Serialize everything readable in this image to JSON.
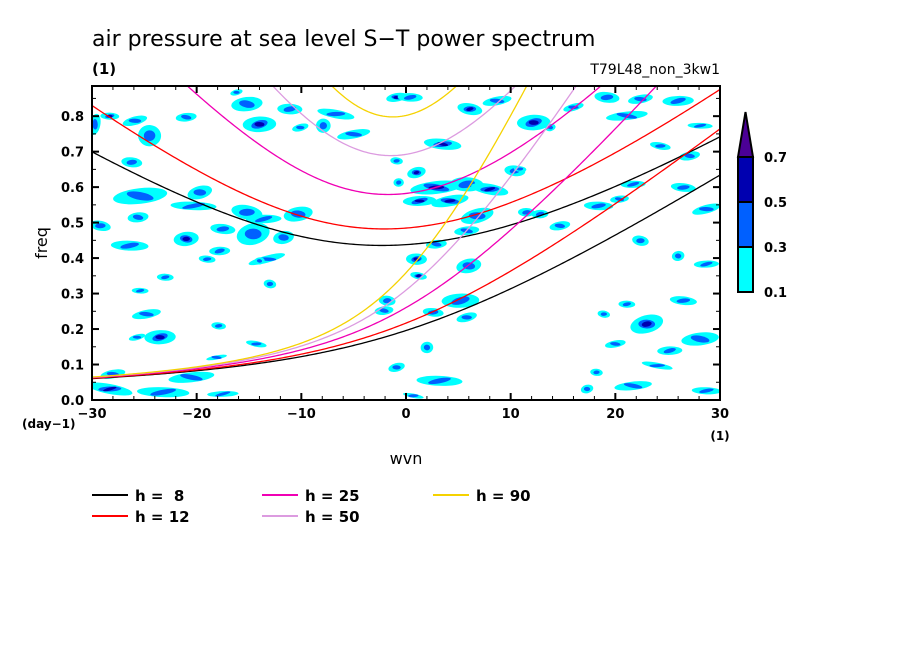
{
  "chart_data": {
    "type": "heatmap",
    "subtype": "filled-contour with overlaid dispersion curves",
    "title": "air pressure at sea level S−T power spectrum",
    "subtitle": "(1)",
    "run_label": "T79L48_non_3kw1",
    "xlabel": "wvn",
    "ylabel": "freq",
    "x_units": "(1)",
    "y_units": "(day−1)",
    "xlim": [
      -30,
      30
    ],
    "ylim": [
      0,
      0.885
    ],
    "xticks": [
      -30,
      -20,
      -10,
      0,
      10,
      20,
      30
    ],
    "xtick_labels": [
      "−30",
      "−20",
      "−10",
      "0",
      "10",
      "20",
      "30"
    ],
    "x_minor_step": 2,
    "yticks": [
      0.0,
      0.1,
      0.2,
      0.3,
      0.4,
      0.5,
      0.6,
      0.7,
      0.8
    ],
    "ytick_labels": [
      "0.0",
      "0.1",
      "0.2",
      "0.3",
      "0.4",
      "0.5",
      "0.6",
      "0.7",
      "0.8"
    ],
    "y_minor_step": 0.05,
    "grid": false,
    "colorbar": {
      "position": "right",
      "levels": [
        0.1,
        0.3,
        0.5,
        0.7
      ],
      "level_labels": [
        "0.1",
        "0.3",
        "0.5",
        "0.7"
      ],
      "colors": [
        "#00ffff",
        "#0060ff",
        "#0000b0",
        "#4b0096"
      ],
      "extend": "max"
    },
    "legend": {
      "placement": "bottom-left",
      "entries": [
        {
          "label": "h =  8",
          "h": 8,
          "color": "#000000"
        },
        {
          "label": "h = 12",
          "h": 12,
          "color": "#ff0000"
        },
        {
          "label": "h = 25",
          "h": 25,
          "color": "#f000b4"
        },
        {
          "label": "h = 50",
          "h": 50,
          "color": "#dc9be0"
        },
        {
          "label": "h = 90",
          "h": 90,
          "color": "#f5d200"
        }
      ]
    },
    "contour_regions_format": [
      "wvn",
      "freq",
      "half_width_wvn",
      "half_height_freq",
      "peak_power"
    ],
    "contour_regions": [
      [
        -16.2,
        0.867,
        0.6,
        0.008,
        0.2
      ],
      [
        -15.2,
        0.834,
        1.5,
        0.02,
        0.2
      ],
      [
        -11.1,
        0.82,
        1.2,
        0.015,
        0.2
      ],
      [
        -6.7,
        0.806,
        1.8,
        0.012,
        0.2
      ],
      [
        -0.9,
        0.853,
        1.0,
        0.012,
        0.4
      ],
      [
        -14,
        0.777,
        1.6,
        0.022,
        0.4
      ],
      [
        -24.5,
        0.745,
        1.1,
        0.03,
        0.2
      ],
      [
        -25.9,
        0.787,
        1.2,
        0.012,
        0.2
      ],
      [
        -21,
        0.797,
        1.0,
        0.012,
        0.2
      ],
      [
        -28.3,
        0.8,
        0.9,
        0.01,
        0.4
      ],
      [
        -29.7,
        0.777,
        0.5,
        0.03,
        0.2
      ],
      [
        -5,
        0.749,
        1.6,
        0.012,
        0.2
      ],
      [
        -7.9,
        0.773,
        0.7,
        0.02,
        0.2
      ],
      [
        -26.2,
        0.67,
        1.0,
        0.014,
        0.2
      ],
      [
        -19.7,
        0.585,
        1.2,
        0.018,
        0.2
      ],
      [
        -25.4,
        0.575,
        2.6,
        0.022,
        0.2
      ],
      [
        -20.3,
        0.547,
        2.2,
        0.012,
        0.2
      ],
      [
        -15.2,
        0.529,
        1.5,
        0.02,
        0.2
      ],
      [
        -10.3,
        0.524,
        1.4,
        0.02,
        0.2
      ],
      [
        -13.6,
        0.51,
        1.7,
        0.012,
        0.2
      ],
      [
        -17.5,
        0.482,
        1.2,
        0.014,
        0.2
      ],
      [
        -14.6,
        0.468,
        1.6,
        0.03,
        0.2
      ],
      [
        -21,
        0.454,
        1.2,
        0.02,
        0.4
      ],
      [
        -26.4,
        0.435,
        1.8,
        0.014,
        0.2
      ],
      [
        -29.2,
        0.491,
        1.0,
        0.014,
        0.2
      ],
      [
        -11.7,
        0.458,
        1.0,
        0.018,
        0.2
      ],
      [
        -17.8,
        0.42,
        1.0,
        0.012,
        0.2
      ],
      [
        -19,
        0.397,
        0.8,
        0.01,
        0.2
      ],
      [
        -13.3,
        0.397,
        1.8,
        0.01,
        0.2
      ],
      [
        -25.6,
        0.515,
        1.0,
        0.014,
        0.2
      ],
      [
        -23,
        0.346,
        0.8,
        0.01,
        0.2
      ],
      [
        -13,
        0.327,
        0.6,
        0.012,
        0.2
      ],
      [
        -24.8,
        0.242,
        1.4,
        0.012,
        0.2
      ],
      [
        -23.5,
        0.177,
        1.5,
        0.02,
        0.4
      ],
      [
        -17.9,
        0.209,
        0.7,
        0.01,
        0.2
      ],
      [
        -25.7,
        0.177,
        0.8,
        0.008,
        0.2
      ],
      [
        -20.5,
        0.064,
        2.2,
        0.014,
        0.2
      ],
      [
        -23.2,
        0.022,
        2.5,
        0.014,
        0.2
      ],
      [
        -28.3,
        0.031,
        2.2,
        0.014,
        0.4
      ],
      [
        -28,
        0.073,
        1.2,
        0.012,
        0.2
      ],
      [
        -17.5,
        0.017,
        1.5,
        0.008,
        0.2
      ],
      [
        -1.8,
        0.28,
        0.8,
        0.014,
        0.2
      ],
      [
        -0.9,
        0.092,
        0.8,
        0.012,
        0.2
      ],
      [
        -2.1,
        0.252,
        0.9,
        0.012,
        0.2
      ],
      [
        -25.4,
        0.308,
        0.8,
        0.008,
        0.2
      ],
      [
        -14.3,
        0.158,
        1.0,
        0.008,
        0.2
      ],
      [
        -18.1,
        0.12,
        1.0,
        0.006,
        0.2
      ],
      [
        -0.7,
        0.613,
        0.5,
        0.012,
        0.2
      ],
      [
        -0.9,
        0.674,
        0.6,
        0.01,
        0.2
      ],
      [
        -10.1,
        0.768,
        0.8,
        0.01,
        0.2
      ],
      [
        -14,
        0.392,
        0.5,
        0.01,
        0.2
      ],
      [
        0.4,
        0.853,
        1.2,
        0.012,
        0.2
      ],
      [
        6.1,
        0.82,
        1.2,
        0.016,
        0.4
      ],
      [
        8.7,
        0.843,
        1.4,
        0.012,
        0.2
      ],
      [
        12.2,
        0.782,
        1.6,
        0.022,
        0.4
      ],
      [
        3.5,
        0.721,
        1.8,
        0.015,
        0.4
      ],
      [
        1.0,
        0.641,
        0.9,
        0.015,
        0.4
      ],
      [
        2.9,
        0.599,
        2.5,
        0.018,
        0.6
      ],
      [
        5.8,
        0.608,
        1.6,
        0.02,
        0.2
      ],
      [
        8.0,
        0.594,
        1.8,
        0.015,
        0.4
      ],
      [
        4.2,
        0.561,
        1.8,
        0.015,
        0.4
      ],
      [
        1.3,
        0.561,
        1.6,
        0.014,
        0.4
      ],
      [
        10.4,
        0.646,
        1.0,
        0.015,
        0.2
      ],
      [
        6.8,
        0.519,
        1.6,
        0.02,
        0.2
      ],
      [
        5.8,
        0.477,
        1.2,
        0.012,
        0.2
      ],
      [
        1.0,
        0.397,
        1.0,
        0.016,
        0.4
      ],
      [
        1.2,
        0.35,
        0.8,
        0.01,
        0.4
      ],
      [
        6.0,
        0.378,
        1.2,
        0.02,
        0.2
      ],
      [
        5.2,
        0.28,
        1.8,
        0.02,
        0.2
      ],
      [
        2.6,
        0.247,
        1.0,
        0.012,
        0.2
      ],
      [
        5.8,
        0.233,
        1.0,
        0.012,
        0.2
      ],
      [
        2.0,
        0.148,
        0.6,
        0.016,
        0.2
      ],
      [
        3.2,
        0.054,
        2.2,
        0.014,
        0.2
      ],
      [
        0.7,
        0.012,
        1.0,
        0.006,
        0.2
      ],
      [
        22.4,
        0.848,
        1.2,
        0.012,
        0.2
      ],
      [
        26.0,
        0.843,
        1.5,
        0.014,
        0.2
      ],
      [
        19.2,
        0.853,
        1.2,
        0.015,
        0.2
      ],
      [
        16.0,
        0.825,
        1.0,
        0.01,
        0.2
      ],
      [
        21.1,
        0.801,
        2.0,
        0.012,
        0.2
      ],
      [
        28.1,
        0.773,
        1.2,
        0.008,
        0.2
      ],
      [
        24.3,
        0.716,
        1.0,
        0.01,
        0.2
      ],
      [
        27.1,
        0.688,
        1.0,
        0.012,
        0.2
      ],
      [
        21.7,
        0.608,
        1.2,
        0.01,
        0.2
      ],
      [
        26.5,
        0.599,
        1.2,
        0.012,
        0.2
      ],
      [
        28.7,
        0.538,
        1.4,
        0.012,
        0.2
      ],
      [
        20.4,
        0.566,
        0.9,
        0.01,
        0.2
      ],
      [
        18.4,
        0.547,
        1.4,
        0.012,
        0.2
      ],
      [
        22.4,
        0.449,
        0.8,
        0.014,
        0.2
      ],
      [
        26.0,
        0.406,
        0.6,
        0.014,
        0.2
      ],
      [
        28.7,
        0.383,
        1.2,
        0.01,
        0.2
      ],
      [
        26.5,
        0.28,
        1.3,
        0.012,
        0.2
      ],
      [
        23.0,
        0.214,
        1.6,
        0.025,
        0.4
      ],
      [
        28.1,
        0.172,
        1.8,
        0.018,
        0.2
      ],
      [
        21.1,
        0.27,
        0.8,
        0.01,
        0.2
      ],
      [
        18.9,
        0.242,
        0.6,
        0.01,
        0.2
      ],
      [
        20.0,
        0.158,
        1.0,
        0.01,
        0.2
      ],
      [
        25.2,
        0.139,
        1.2,
        0.012,
        0.2
      ],
      [
        18.2,
        0.078,
        0.6,
        0.01,
        0.2
      ],
      [
        17.3,
        0.031,
        0.6,
        0.012,
        0.2
      ],
      [
        21.7,
        0.04,
        1.8,
        0.012,
        0.2
      ],
      [
        28.7,
        0.026,
        1.4,
        0.01,
        0.2
      ],
      [
        24.0,
        0.097,
        1.5,
        0.008,
        0.2
      ],
      [
        14.7,
        0.491,
        1.0,
        0.012,
        0.2
      ],
      [
        12.8,
        0.524,
        0.8,
        0.012,
        0.2
      ],
      [
        10.9,
        0.651,
        0.6,
        0.008,
        0.2
      ],
      [
        13.8,
        0.768,
        0.5,
        0.01,
        0.2
      ],
      [
        2.9,
        0.439,
        1.0,
        0.012,
        0.2
      ],
      [
        11.5,
        0.529,
        0.8,
        0.012,
        0.2
      ]
    ]
  }
}
